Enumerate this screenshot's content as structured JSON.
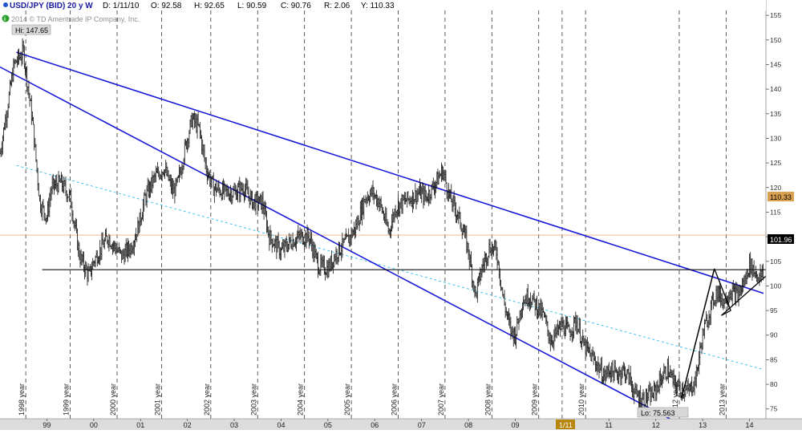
{
  "header": {
    "symbol": "USD/JPY (BID) 20 y W",
    "date": "D: 1/11/10",
    "open": "O: 92.58",
    "high": "H: 92.65",
    "low": "L: 90.59",
    "close": "C: 90.76",
    "range": "R: 2.06",
    "y": "Y: 110.33",
    "copyright": "2014 © TD Ameritrade IP Company, Inc."
  },
  "annotations": {
    "hi": "Hi: 147.65",
    "lo": "Lo: 75.563",
    "price_last": "110.33",
    "price_current": "101.96",
    "cursor_date": "1/11"
  },
  "colors": {
    "candles": "#111111",
    "channel": "#1a1ad6",
    "midline": "#33bbee",
    "horizontal_level": "#111111",
    "last_price_line": "#e8b08a",
    "last_price_label": "#d9a14f",
    "current_price_label": "#000000",
    "cursor_date_label": "#b8860b",
    "x_axis_bg": "#dcdcdc"
  },
  "chart_data": {
    "type": "candlestick",
    "title": "USD/JPY (BID) 20 y W",
    "timeframe": "weekly",
    "x_range": [
      1998.0,
      2014.35
    ],
    "ylim": [
      73,
      156
    ],
    "yticks": [
      75,
      80,
      85,
      90,
      95,
      100,
      105,
      110,
      115,
      120,
      125,
      130,
      135,
      140,
      145,
      150,
      155
    ],
    "xticks": [
      {
        "x": 1999.0,
        "label": "99"
      },
      {
        "x": 2000.0,
        "label": "00"
      },
      {
        "x": 2001.0,
        "label": "01"
      },
      {
        "x": 2002.0,
        "label": "02"
      },
      {
        "x": 2003.0,
        "label": "03"
      },
      {
        "x": 2004.0,
        "label": "04"
      },
      {
        "x": 2005.0,
        "label": "05"
      },
      {
        "x": 2006.0,
        "label": "06"
      },
      {
        "x": 2007.0,
        "label": "07"
      },
      {
        "x": 2008.0,
        "label": "08"
      },
      {
        "x": 2009.0,
        "label": "09"
      },
      {
        "x": 2011.0,
        "label": "11"
      },
      {
        "x": 2012.0,
        "label": "12"
      },
      {
        "x": 2013.0,
        "label": "13"
      },
      {
        "x": 2014.0,
        "label": "14"
      }
    ],
    "year_markers": [
      {
        "x": 1998.55,
        "label": "1998 year"
      },
      {
        "x": 1999.5,
        "label": "1999 year"
      },
      {
        "x": 2000.5,
        "label": "2000 year"
      },
      {
        "x": 2001.45,
        "label": "2001 year"
      },
      {
        "x": 2002.5,
        "label": "2002 year"
      },
      {
        "x": 2003.5,
        "label": "2003 year"
      },
      {
        "x": 2004.5,
        "label": "2004 year"
      },
      {
        "x": 2005.5,
        "label": "2005 year"
      },
      {
        "x": 2006.5,
        "label": "2006 year"
      },
      {
        "x": 2007.5,
        "label": "2007 year"
      },
      {
        "x": 2008.5,
        "label": "2008 year"
      },
      {
        "x": 2009.5,
        "label": "2009 year"
      },
      {
        "x": 2010.5,
        "label": "2010 year"
      },
      {
        "x": 2012.5,
        "label": "2012 year"
      },
      {
        "x": 2013.5,
        "label": "2013 year"
      }
    ],
    "cursor_x": 2010.0,
    "price_path": [
      [
        1998.0,
        127
      ],
      [
        1998.3,
        145
      ],
      [
        1998.5,
        147.6
      ],
      [
        1998.7,
        133
      ],
      [
        1998.85,
        117
      ],
      [
        1999.0,
        114
      ],
      [
        1999.1,
        120
      ],
      [
        1999.3,
        121
      ],
      [
        1999.5,
        118
      ],
      [
        1999.7,
        106
      ],
      [
        1999.9,
        102
      ],
      [
        2000.0,
        105
      ],
      [
        2000.3,
        110
      ],
      [
        2000.6,
        106
      ],
      [
        2000.8,
        108
      ],
      [
        2000.95,
        112
      ],
      [
        2001.1,
        118
      ],
      [
        2001.3,
        122
      ],
      [
        2001.5,
        124
      ],
      [
        2001.7,
        119
      ],
      [
        2001.8,
        121
      ],
      [
        2001.95,
        128
      ],
      [
        2002.1,
        134
      ],
      [
        2002.25,
        132
      ],
      [
        2002.4,
        124
      ],
      [
        2002.55,
        120
      ],
      [
        2002.8,
        119
      ],
      [
        2003.0,
        119
      ],
      [
        2003.2,
        120
      ],
      [
        2003.4,
        117
      ],
      [
        2003.6,
        117
      ],
      [
        2003.75,
        110
      ],
      [
        2004.0,
        107
      ],
      [
        2004.2,
        109
      ],
      [
        2004.4,
        110
      ],
      [
        2004.6,
        110
      ],
      [
        2004.8,
        104
      ],
      [
        2005.0,
        103.5
      ],
      [
        2005.2,
        107
      ],
      [
        2005.4,
        109
      ],
      [
        2005.6,
        112
      ],
      [
        2005.8,
        118
      ],
      [
        2005.95,
        119
      ],
      [
        2006.1,
        117
      ],
      [
        2006.3,
        111
      ],
      [
        2006.45,
        116
      ],
      [
        2006.6,
        117
      ],
      [
        2006.8,
        118
      ],
      [
        2006.95,
        119
      ],
      [
        2007.1,
        118
      ],
      [
        2007.3,
        121
      ],
      [
        2007.45,
        123.5
      ],
      [
        2007.6,
        118
      ],
      [
        2007.75,
        115
      ],
      [
        2007.9,
        111
      ],
      [
        2008.0,
        107
      ],
      [
        2008.15,
        98
      ],
      [
        2008.3,
        104
      ],
      [
        2008.45,
        108
      ],
      [
        2008.6,
        107
      ],
      [
        2008.75,
        97
      ],
      [
        2008.9,
        91
      ],
      [
        2009.0,
        90
      ],
      [
        2009.15,
        97
      ],
      [
        2009.3,
        98
      ],
      [
        2009.45,
        96
      ],
      [
        2009.6,
        94
      ],
      [
        2009.75,
        89
      ],
      [
        2009.85,
        90
      ],
      [
        2010.0,
        92
      ],
      [
        2010.15,
        90.5
      ],
      [
        2010.3,
        93
      ],
      [
        2010.45,
        88
      ],
      [
        2010.6,
        86
      ],
      [
        2010.75,
        84
      ],
      [
        2010.9,
        81.5
      ],
      [
        2011.0,
        83
      ],
      [
        2011.15,
        82
      ],
      [
        2011.3,
        83
      ],
      [
        2011.45,
        81
      ],
      [
        2011.55,
        78
      ],
      [
        2011.7,
        77
      ],
      [
        2011.85,
        77.5
      ],
      [
        2011.95,
        78
      ],
      [
        2012.1,
        81
      ],
      [
        2012.25,
        83
      ],
      [
        2012.4,
        80
      ],
      [
        2012.55,
        79
      ],
      [
        2012.7,
        78.5
      ],
      [
        2012.85,
        81
      ],
      [
        2013.0,
        90
      ],
      [
        2013.15,
        95
      ],
      [
        2013.3,
        99
      ],
      [
        2013.45,
        97
      ],
      [
        2013.6,
        99
      ],
      [
        2013.75,
        98
      ],
      [
        2013.9,
        101
      ],
      [
        2014.0,
        104.5
      ],
      [
        2014.1,
        103
      ],
      [
        2014.2,
        102
      ],
      [
        2014.3,
        102
      ]
    ],
    "lines": {
      "channel_upper": [
        [
          1998.35,
          147.5
        ],
        [
          2014.3,
          98.5
        ]
      ],
      "channel_lower": [
        [
          1998.0,
          144.5
        ],
        [
          2012.3,
          73
        ]
      ],
      "channel_mid": [
        [
          1998.35,
          124.5
        ],
        [
          2014.3,
          83
        ]
      ],
      "horizontal_level": [
        [
          1998.9,
          103.3
        ],
        [
          2014.35,
          103.3
        ]
      ],
      "last_price": [
        [
          1998.0,
          110.33
        ],
        [
          2014.35,
          110.33
        ]
      ],
      "trend_steep": [
        [
          2012.55,
          77.2
        ],
        [
          2013.25,
          103.5
        ]
      ],
      "triangle_upper": [
        [
          2013.25,
          103.5
        ],
        [
          2013.6,
          95
        ]
      ],
      "triangle_lower": [
        [
          2013.4,
          94
        ],
        [
          2014.35,
          102
        ]
      ],
      "triangle_base": [
        [
          2013.6,
          95
        ],
        [
          2013.4,
          94
        ]
      ]
    }
  }
}
